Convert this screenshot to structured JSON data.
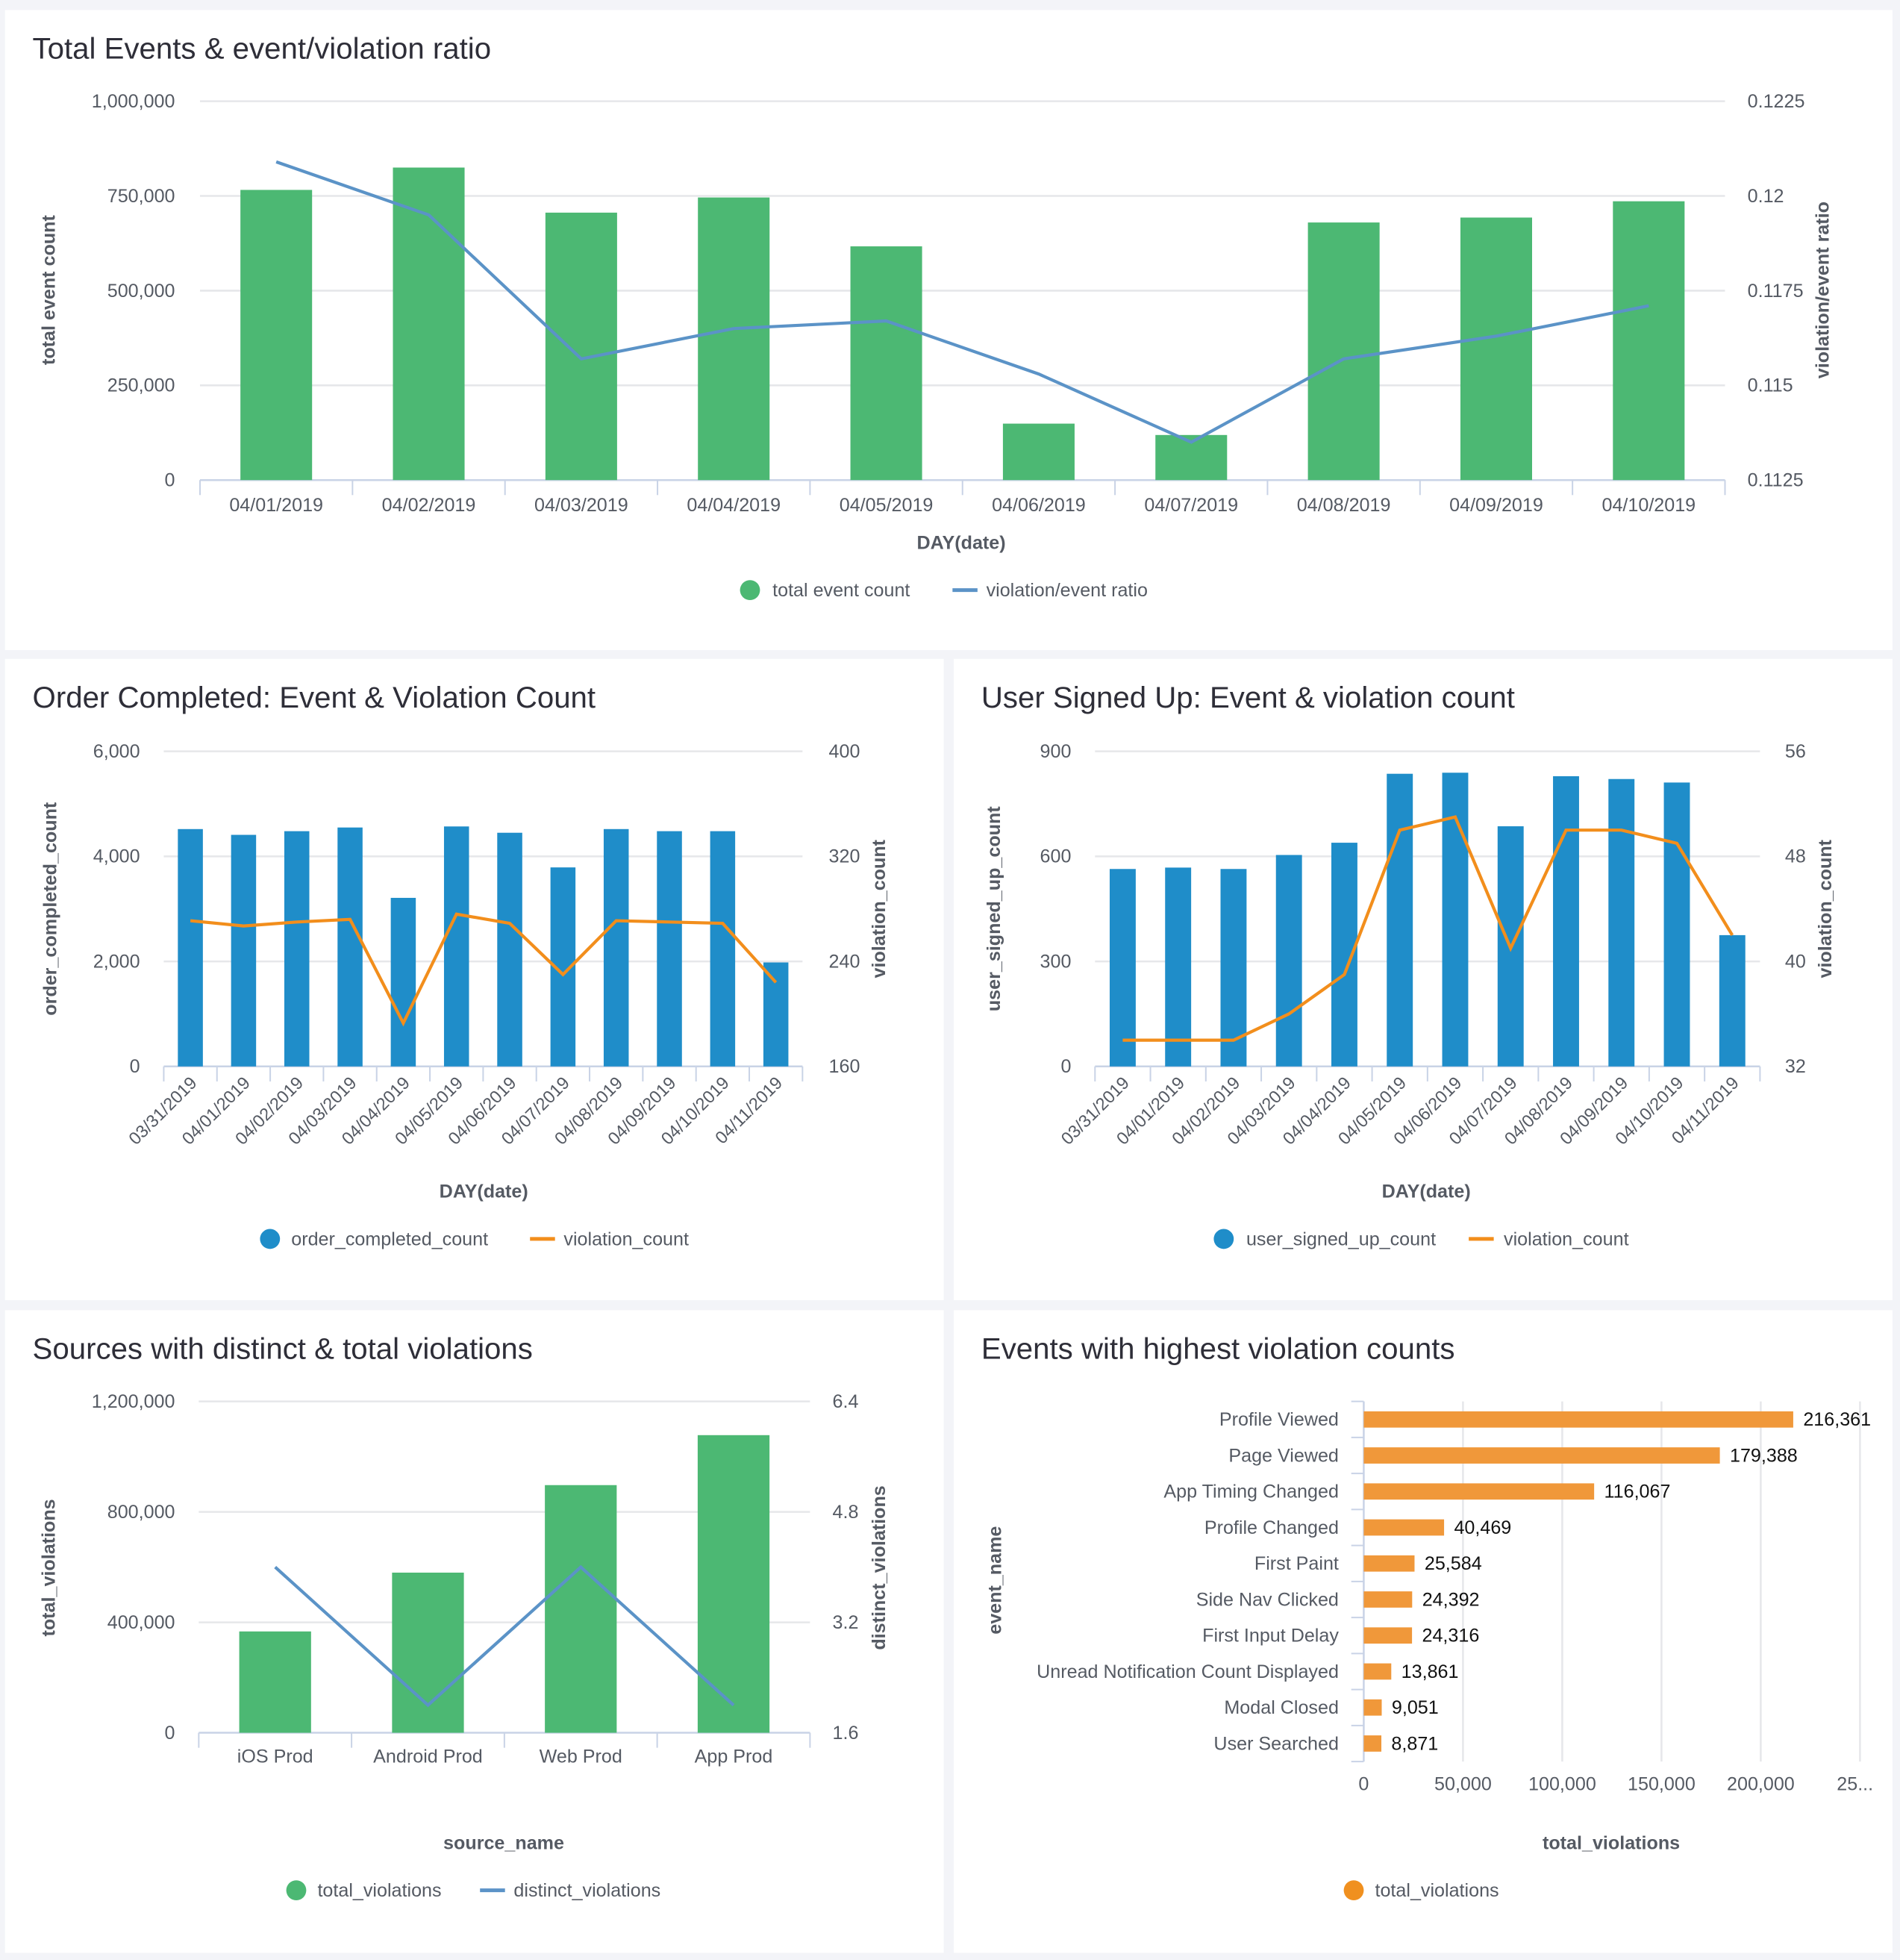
{
  "chart_data": [
    {
      "type": "bar+line",
      "title": "Total Events & event/violation ratio",
      "categories": [
        "04/01/2019",
        "04/02/2019",
        "04/03/2019",
        "04/04/2019",
        "04/05/2019",
        "04/06/2019",
        "04/07/2019",
        "04/08/2019",
        "04/09/2019",
        "04/10/2019"
      ],
      "series": [
        {
          "name": "total event count",
          "type": "bar",
          "axis": "left",
          "color": "#4cb873",
          "values": [
            766000,
            825000,
            706000,
            746000,
            617000,
            149000,
            119000,
            680000,
            693000,
            736000
          ]
        },
        {
          "name": "violation/event ratio",
          "type": "line",
          "axis": "right",
          "color": "#5b93c7",
          "values": [
            0.1209,
            0.1195,
            0.1157,
            0.1165,
            0.1167,
            0.1153,
            0.1135,
            0.1157,
            0.1163,
            0.1171
          ]
        }
      ],
      "xlabel": "DAY(date)",
      "ylabel_left": "total event count",
      "ylabel_right": "violation/event ratio",
      "ylim_left": [
        0,
        1000000
      ],
      "ylim_right": [
        0.1125,
        0.1225
      ],
      "yticks_left": [
        "0",
        "250,000",
        "500,000",
        "750,000",
        "1,000,000"
      ],
      "yticks_right": [
        "0.1125",
        "0.115",
        "0.1175",
        "0.12",
        "0.1225"
      ],
      "grid": true,
      "legend": "bottom"
    },
    {
      "type": "bar+line",
      "title": "Order Completed: Event & Violation Count",
      "categories": [
        "03/31/2019",
        "04/01/2019",
        "04/02/2019",
        "04/03/2019",
        "04/04/2019",
        "04/05/2019",
        "04/06/2019",
        "04/07/2019",
        "04/08/2019",
        "04/09/2019",
        "04/10/2019",
        "04/11/2019"
      ],
      "series": [
        {
          "name": "order_completed_count",
          "type": "bar",
          "axis": "left",
          "color": "#1f8dc9",
          "values": [
            4520,
            4410,
            4480,
            4550,
            3210,
            4570,
            4450,
            3790,
            4520,
            4480,
            4480,
            1980
          ]
        },
        {
          "name": "violation_count",
          "type": "line",
          "axis": "right",
          "color": "#f28e1c",
          "values": [
            271,
            267,
            270,
            272,
            193,
            276,
            269,
            230,
            271,
            270,
            269,
            224
          ]
        }
      ],
      "xlabel": "DAY(date)",
      "ylabel_left": "order_completed_count",
      "ylabel_right": "violation_count",
      "ylim_left": [
        0,
        6000
      ],
      "ylim_right": [
        160,
        400
      ],
      "yticks_left": [
        "0",
        "2,000",
        "4,000",
        "6,000"
      ],
      "yticks_right": [
        "160",
        "240",
        "320",
        "400"
      ],
      "grid": true,
      "legend": "bottom"
    },
    {
      "type": "bar+line",
      "title": "User Signed Up: Event & violation count",
      "categories": [
        "03/31/2019",
        "04/01/2019",
        "04/02/2019",
        "04/03/2019",
        "04/04/2019",
        "04/05/2019",
        "04/06/2019",
        "04/07/2019",
        "04/08/2019",
        "04/09/2019",
        "04/10/2019",
        "04/11/2019"
      ],
      "series": [
        {
          "name": "user_signed_up_count",
          "type": "bar",
          "axis": "left",
          "color": "#1f8dc9",
          "values": [
            564,
            568,
            564,
            604,
            639,
            836,
            839,
            686,
            829,
            821,
            811,
            375
          ]
        },
        {
          "name": "violation_count",
          "type": "line",
          "axis": "right",
          "color": "#f28e1c",
          "values": [
            34,
            34,
            34,
            36,
            39,
            50,
            51,
            41,
            50,
            50,
            49,
            42
          ]
        }
      ],
      "xlabel": "DAY(date)",
      "ylabel_left": "user_signed_up_count",
      "ylabel_right": "violation_count",
      "ylim_left": [
        0,
        900
      ],
      "ylim_right": [
        32,
        56
      ],
      "yticks_left": [
        "0",
        "300",
        "600",
        "900"
      ],
      "yticks_right": [
        "32",
        "40",
        "48",
        "56"
      ],
      "grid": true,
      "legend": "bottom"
    },
    {
      "type": "bar+line",
      "title": "Sources with distinct & total violations",
      "categories": [
        "iOS Prod",
        "Android Prod",
        "Web Prod",
        "App Prod"
      ],
      "series": [
        {
          "name": "total_violations",
          "type": "bar",
          "axis": "left",
          "color": "#4cb873",
          "values": [
            367000,
            580000,
            897000,
            1078000
          ]
        },
        {
          "name": "distinct_violations",
          "type": "line",
          "axis": "right",
          "color": "#5b93c7",
          "values": [
            4,
            2,
            4,
            2
          ]
        }
      ],
      "xlabel": "source_name",
      "ylabel_left": "total_violations",
      "ylabel_right": "distinct_violations",
      "ylim_left": [
        0,
        1200000
      ],
      "ylim_right": [
        1.6,
        6.4
      ],
      "yticks_left": [
        "0",
        "400,000",
        "800,000",
        "1,200,000"
      ],
      "yticks_right": [
        "1.6",
        "3.2",
        "4.8",
        "6.4"
      ],
      "grid": true,
      "legend": "bottom"
    },
    {
      "type": "hbar",
      "title": "Events with highest violation counts",
      "categories": [
        "Profile Viewed",
        "Page Viewed",
        "App Timing Changed",
        "Profile Changed",
        "First Paint",
        "Side Nav Clicked",
        "First Input Delay",
        "Unread Notification Count Displayed",
        "Modal Closed",
        "User Searched"
      ],
      "series": [
        {
          "name": "total_violations",
          "color": "#f0983a",
          "values": [
            216361,
            179388,
            116067,
            40469,
            25584,
            24392,
            24316,
            13861,
            9051,
            8871
          ],
          "value_labels": [
            "216,361",
            "179,388",
            "116,067",
            "40,469",
            "25,584",
            "24,392",
            "24,316",
            "13,861",
            "9,051",
            "8,871"
          ]
        }
      ],
      "xlabel": "total_violations",
      "ylabel": "event_name",
      "xlim": [
        0,
        250000
      ],
      "xticks": [
        "0",
        "50,000",
        "100,000",
        "150,000",
        "200,000",
        "25..."
      ],
      "grid": true,
      "legend": "bottom"
    }
  ]
}
